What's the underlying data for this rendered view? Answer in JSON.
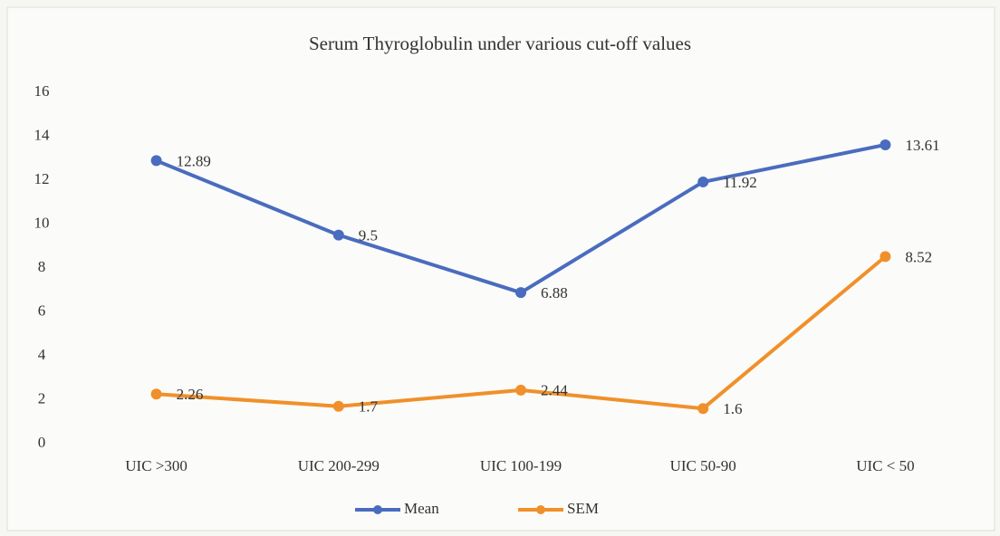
{
  "chart_data": {
    "type": "line",
    "title": "Serum Thyroglobulin  under various cut-off values",
    "categories": [
      "UIC >300",
      "UIC 200-299",
      "UIC 100-199",
      "UIC 50-90",
      "UIC < 50"
    ],
    "series": [
      {
        "name": "Mean",
        "color": "#4a6cbf",
        "values": [
          12.89,
          9.5,
          6.88,
          11.92,
          13.61
        ]
      },
      {
        "name": "SEM",
        "color": "#f0902a",
        "values": [
          2.26,
          1.7,
          2.44,
          1.6,
          8.52
        ]
      }
    ],
    "ylim": [
      0,
      16
    ],
    "yticks": [
      0,
      2,
      4,
      6,
      8,
      10,
      12,
      14,
      16
    ],
    "grid": false,
    "legend": "bottom"
  }
}
